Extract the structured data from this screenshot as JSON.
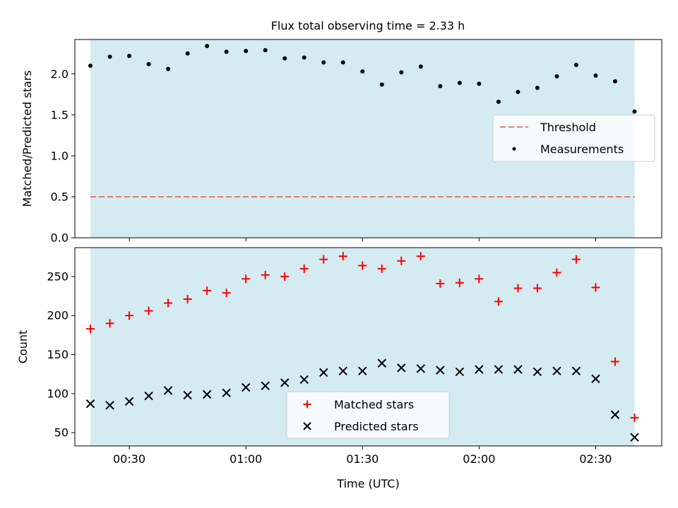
{
  "chart_data": [
    {
      "type": "scatter",
      "title": "Flux total observing time = 2.33 h",
      "xlabel": "",
      "ylabel": "Matched/Predicted stars",
      "xlim": [
        "00:16",
        "02:47"
      ],
      "ylim": [
        0,
        2.42
      ],
      "yticks": [
        0.0,
        0.5,
        1.0,
        1.5,
        2.0
      ],
      "ytick_labels": [
        "0.0",
        "0.5",
        "1.0",
        "1.5",
        "2.0"
      ],
      "shaded_span": [
        "00:20",
        "02:40"
      ],
      "threshold": 0.5,
      "legend_position": "center-right",
      "legend": [
        "Threshold",
        "Measurements"
      ],
      "x": [
        "00:20",
        "00:25",
        "00:30",
        "00:35",
        "00:40",
        "00:45",
        "00:50",
        "00:55",
        "01:00",
        "01:05",
        "01:10",
        "01:15",
        "01:20",
        "01:25",
        "01:30",
        "01:35",
        "01:40",
        "01:45",
        "01:50",
        "01:55",
        "02:00",
        "02:05",
        "02:10",
        "02:15",
        "02:20",
        "02:25",
        "02:30",
        "02:35",
        "02:40"
      ],
      "series": [
        {
          "name": "Measurements",
          "values": [
            2.1,
            2.21,
            2.22,
            2.12,
            2.06,
            2.25,
            2.34,
            2.27,
            2.28,
            2.29,
            2.19,
            2.2,
            2.14,
            2.14,
            2.03,
            1.87,
            2.02,
            2.09,
            1.85,
            1.89,
            1.88,
            1.66,
            1.78,
            1.83,
            1.97,
            2.11,
            1.98,
            1.91,
            1.54
          ]
        }
      ]
    },
    {
      "type": "scatter",
      "title": "",
      "xlabel": "Time (UTC)",
      "ylabel": "Count",
      "xlim": [
        "00:16",
        "02:47"
      ],
      "xticks": [
        "00:30",
        "01:00",
        "01:30",
        "02:00",
        "02:30"
      ],
      "ylim": [
        33,
        287
      ],
      "yticks": [
        50,
        100,
        150,
        200,
        250
      ],
      "ytick_labels": [
        "50",
        "100",
        "150",
        "200",
        "250"
      ],
      "shaded_span": [
        "00:20",
        "02:40"
      ],
      "legend_position": "lower-center",
      "legend": [
        "Matched stars",
        "Predicted stars"
      ],
      "x": [
        "00:20",
        "00:25",
        "00:30",
        "00:35",
        "00:40",
        "00:45",
        "00:50",
        "00:55",
        "01:00",
        "01:05",
        "01:10",
        "01:15",
        "01:20",
        "01:25",
        "01:30",
        "01:35",
        "01:40",
        "01:45",
        "01:50",
        "01:55",
        "02:00",
        "02:05",
        "02:10",
        "02:15",
        "02:20",
        "02:25",
        "02:30",
        "02:35",
        "02:40"
      ],
      "series": [
        {
          "name": "Matched stars",
          "values": [
            183,
            190,
            200,
            206,
            216,
            221,
            232,
            229,
            247,
            252,
            250,
            260,
            272,
            276,
            264,
            260,
            270,
            276,
            241,
            242,
            247,
            218,
            235,
            235,
            255,
            272,
            236,
            141,
            69
          ]
        },
        {
          "name": "Predicted stars",
          "values": [
            87,
            85,
            90,
            97,
            104,
            98,
            99,
            101,
            108,
            110,
            114,
            118,
            127,
            129,
            129,
            139,
            133,
            132,
            130,
            128,
            131,
            131,
            131,
            128,
            129,
            129,
            119,
            73,
            44
          ]
        }
      ]
    }
  ],
  "colors": {
    "span": "#d4ebf1",
    "threshold": "#f07777",
    "measurements": "#000000",
    "matched": "#ff0000",
    "predicted": "#000000"
  }
}
